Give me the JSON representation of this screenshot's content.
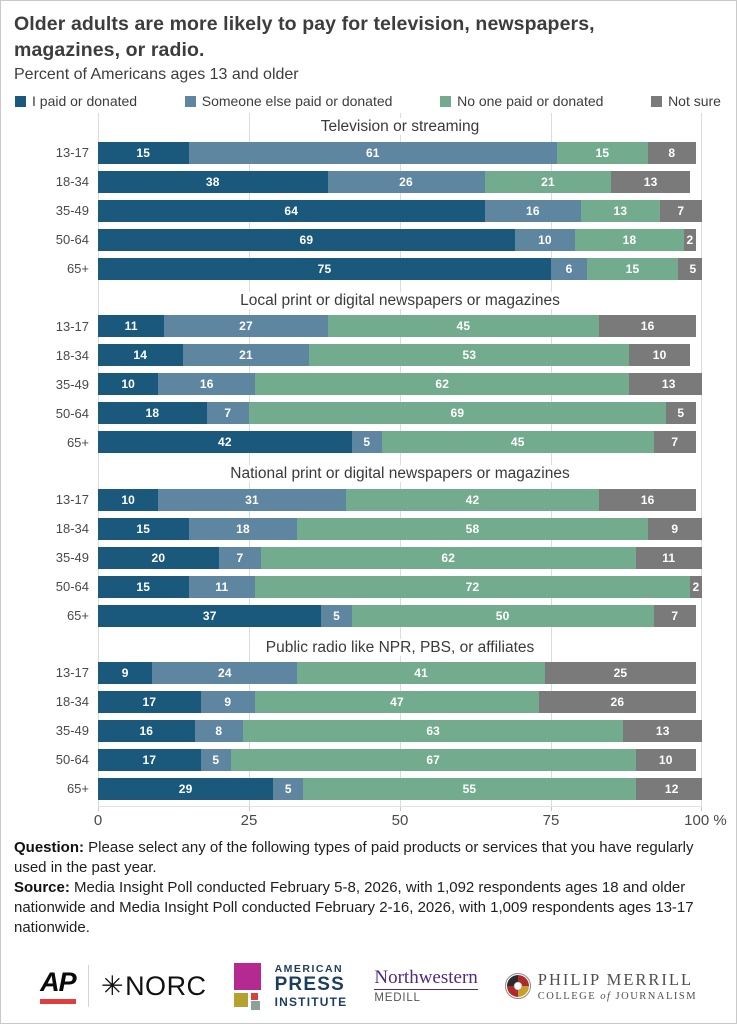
{
  "title": "Older adults are more likely to pay for television, newspapers, magazines, or radio.",
  "subtitle": "Percent of Americans ages 13 and older",
  "legend": [
    {
      "label": "I paid or donated",
      "color": "#1a597c"
    },
    {
      "label": "Someone else paid or donated",
      "color": "#5e86a0"
    },
    {
      "label": "No one paid or donated",
      "color": "#72ab8d"
    },
    {
      "label": "Not sure",
      "color": "#7a7a7a"
    }
  ],
  "chart_data": {
    "type": "bar",
    "stacked": true,
    "orientation": "horizontal",
    "grid": true,
    "xlim": [
      0,
      100
    ],
    "x_ticks": [
      0,
      25,
      50,
      75,
      100
    ],
    "x_suffix": "%",
    "categories": [
      "13-17",
      "18-34",
      "35-49",
      "50-64",
      "65+"
    ],
    "series_names": [
      "I paid or donated",
      "Someone else paid or donated",
      "No one paid or donated",
      "Not sure"
    ],
    "series_colors": [
      "#1a597c",
      "#5e86a0",
      "#72ab8d",
      "#7a7a7a"
    ],
    "sections": [
      {
        "title": "Television or streaming",
        "rows": [
          {
            "category": "13-17",
            "values": [
              15,
              61,
              15,
              8
            ]
          },
          {
            "category": "18-34",
            "values": [
              38,
              26,
              21,
              13
            ]
          },
          {
            "category": "35-49",
            "values": [
              64,
              16,
              13,
              7
            ]
          },
          {
            "category": "50-64",
            "values": [
              69,
              10,
              18,
              2
            ]
          },
          {
            "category": "65+",
            "values": [
              75,
              6,
              15,
              5
            ]
          }
        ]
      },
      {
        "title": "Local print or digital newspapers or magazines",
        "rows": [
          {
            "category": "13-17",
            "values": [
              11,
              27,
              45,
              16
            ]
          },
          {
            "category": "18-34",
            "values": [
              14,
              21,
              53,
              10
            ]
          },
          {
            "category": "35-49",
            "values": [
              10,
              16,
              62,
              13
            ]
          },
          {
            "category": "50-64",
            "values": [
              18,
              7,
              69,
              5
            ]
          },
          {
            "category": "65+",
            "values": [
              42,
              5,
              45,
              7
            ]
          }
        ]
      },
      {
        "title": "National print or digital newspapers or magazines",
        "rows": [
          {
            "category": "13-17",
            "values": [
              10,
              31,
              42,
              16
            ]
          },
          {
            "category": "18-34",
            "values": [
              15,
              18,
              58,
              9
            ]
          },
          {
            "category": "35-49",
            "values": [
              20,
              7,
              62,
              11
            ]
          },
          {
            "category": "50-64",
            "values": [
              15,
              11,
              72,
              2
            ]
          },
          {
            "category": "65+",
            "values": [
              37,
              5,
              50,
              7
            ]
          }
        ]
      },
      {
        "title": "Public radio like NPR, PBS, or affiliates",
        "rows": [
          {
            "category": "13-17",
            "values": [
              9,
              24,
              41,
              25
            ]
          },
          {
            "category": "18-34",
            "values": [
              17,
              9,
              47,
              26
            ]
          },
          {
            "category": "35-49",
            "values": [
              16,
              8,
              63,
              13
            ]
          },
          {
            "category": "50-64",
            "values": [
              17,
              5,
              67,
              10
            ]
          },
          {
            "category": "65+",
            "values": [
              29,
              5,
              55,
              12
            ]
          }
        ]
      }
    ]
  },
  "notes": {
    "question_label": "Question:",
    "question_text": " Please select any of the following types of paid products or services that you have regularly used in the past year.",
    "source_label": "Source:",
    "source_text": " Media Insight Poll conducted February 5-8, 2026, with 1,092 respondents ages 18 and older nationwide and Media Insight Poll conducted February 2-16, 2026, with 1,009 respondents ages 13-17 nationwide."
  },
  "logos": {
    "ap": "AP",
    "norc_star": "✳",
    "norc": "NORC",
    "api_line1": "AMERICAN",
    "api_line2": "PRESS",
    "api_line3": "INSTITUTE",
    "northwestern": "Northwestern",
    "medill": "MEDILL",
    "merrill_line1": "PHILIP MERRILL",
    "merrill_college": "COLLEGE ",
    "merrill_of": "of",
    "merrill_journalism": " JOURNALISM"
  }
}
